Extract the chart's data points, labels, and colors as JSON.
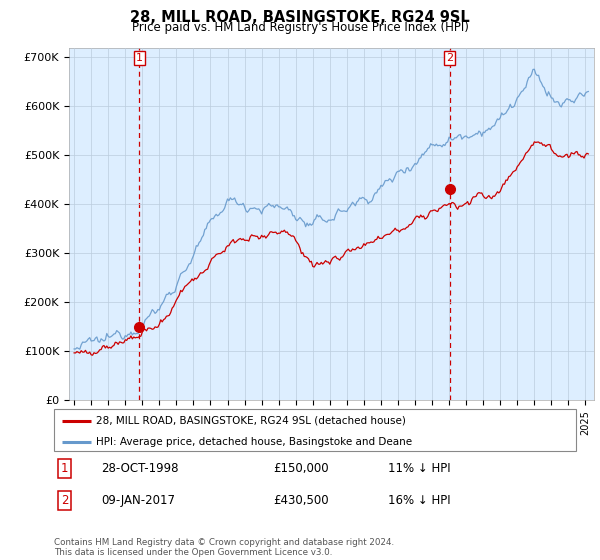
{
  "title": "28, MILL ROAD, BASINGSTOKE, RG24 9SL",
  "subtitle": "Price paid vs. HM Land Registry's House Price Index (HPI)",
  "ylim": [
    0,
    720000
  ],
  "xlim_start": 1994.7,
  "xlim_end": 2025.5,
  "red_line_color": "#cc0000",
  "blue_line_color": "#6699cc",
  "fill_color": "#ddeeff",
  "grid_color": "#bbccdd",
  "background_color": "#ffffff",
  "plot_bg_color": "#ddeeff",
  "sale1_x": 1998.83,
  "sale1_y": 150000,
  "sale2_x": 2017.03,
  "sale2_y": 430500,
  "legend_label_red": "28, MILL ROAD, BASINGSTOKE, RG24 9SL (detached house)",
  "legend_label_blue": "HPI: Average price, detached house, Basingstoke and Deane",
  "table_row1": [
    "1",
    "28-OCT-1998",
    "£150,000",
    "11% ↓ HPI"
  ],
  "table_row2": [
    "2",
    "09-JAN-2017",
    "£430,500",
    "16% ↓ HPI"
  ],
  "footer": "Contains HM Land Registry data © Crown copyright and database right 2024.\nThis data is licensed under the Open Government Licence v3.0.",
  "marker_size": 7
}
